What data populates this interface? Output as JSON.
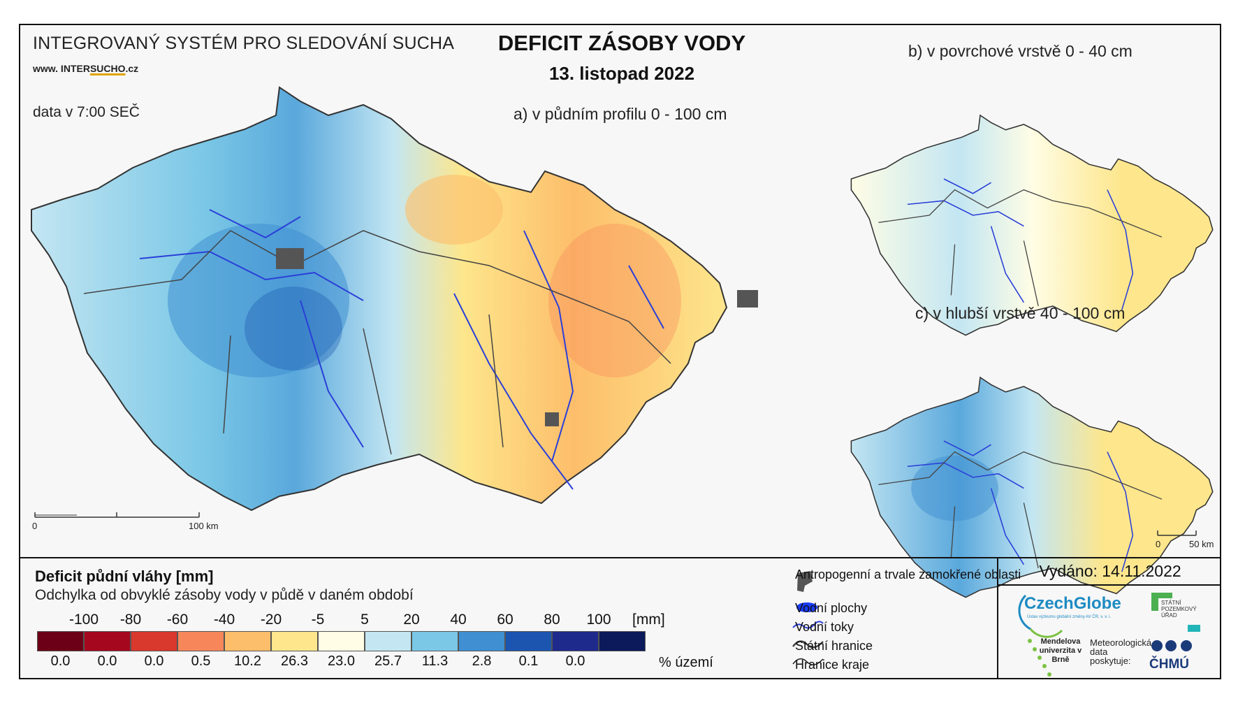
{
  "header": {
    "system_title": "INTEGROVANÝ SYSTÉM PRO SLEDOVÁNÍ SUCHA",
    "website_prefix": "www. INTER",
    "website_highlight": "SUCHO",
    "website_suffix": ".cz",
    "data_time": "data v 7:00 SEČ",
    "main_title": "DEFICIT ZÁSOBY VODY",
    "date": "13. listopad 2022"
  },
  "maps": {
    "a_label": "a) v půdním profilu 0 - 100 cm",
    "b_label": "b) v povrchové vrstvě 0 - 40 cm",
    "c_label": "c) v hlubší vrstvě 40 - 100 cm",
    "scale_main": {
      "zero": "0",
      "end": "100 km"
    },
    "scale_small": {
      "zero": "0",
      "end": "50 km"
    }
  },
  "legend": {
    "title": "Deficit půdní vláhy  [mm]",
    "subtitle": "Odchylka od obvyklé zásoby vody v půdě v daném období",
    "unit": "[mm]",
    "ticks": [
      "-100",
      "-80",
      "-60",
      "-40",
      "-20",
      "-5",
      "5",
      "20",
      "40",
      "60",
      "80",
      "100"
    ],
    "classes": [
      {
        "color": "#6b0016",
        "percent": "0.0"
      },
      {
        "color": "#a5071f",
        "percent": "0.0"
      },
      {
        "color": "#d9382c",
        "percent": "0.0"
      },
      {
        "color": "#f7875a",
        "percent": "0.5"
      },
      {
        "color": "#fdbe6b",
        "percent": "10.2"
      },
      {
        "color": "#fde68c",
        "percent": "26.3"
      },
      {
        "color": "#fffde5",
        "percent": "23.0"
      },
      {
        "color": "#c3e6f2",
        "percent": "25.7"
      },
      {
        "color": "#7ac7e6",
        "percent": "11.3"
      },
      {
        "color": "#3f8fd2",
        "percent": "2.8"
      },
      {
        "color": "#1b55b0",
        "percent": "0.1"
      },
      {
        "color": "#1e2a8c",
        "percent": "0.0"
      },
      {
        "color": "#0c1a5c",
        "percent": ""
      }
    ],
    "percent_label": "% území"
  },
  "symbols": {
    "urban": "Antropogenní a trvale zamokřené oblasti",
    "water_bodies": "Vodní plochy",
    "rivers": "Vodní toky",
    "state_border": "Státní hranice",
    "region_border": "Hranice kraje"
  },
  "footer": {
    "issued": "Vydáno: 14.11.2022",
    "czechglobe": "CzechGlobe",
    "czechglobe_sub": "Ústav výzkumu globální změny AV ČR, v. v. i.",
    "spu": "STÁTNÍ POZEMKOVÝ ÚŘAD",
    "mendel": "Mendelova univerzita v Brně",
    "meteo": "Meteorologická data poskytuje:",
    "chmu": "ČHMÚ"
  }
}
